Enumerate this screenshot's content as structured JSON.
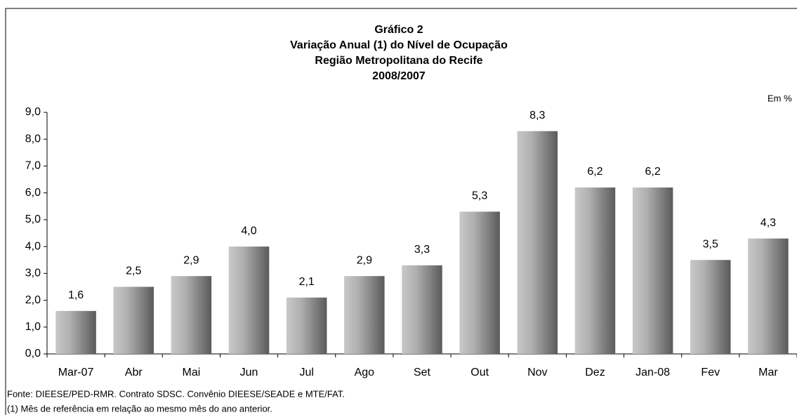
{
  "chart_data": {
    "type": "bar",
    "title": [
      "Gráfico 2",
      "Variação Anual (1) do Nível de Ocupação",
      "Região Metropolitana do Recife",
      "2008/2007"
    ],
    "unit_label": "Em %",
    "categories": [
      "Mar-07",
      "Abr",
      "Mai",
      "Jun",
      "Jul",
      "Ago",
      "Set",
      "Out",
      "Nov",
      "Dez",
      "Jan-08",
      "Fev",
      "Mar"
    ],
    "values": [
      1.6,
      2.5,
      2.9,
      4.0,
      2.1,
      2.9,
      3.3,
      5.3,
      8.3,
      6.2,
      6.2,
      3.5,
      4.3
    ],
    "value_labels": [
      "1,6",
      "2,5",
      "2,9",
      "4,0",
      "2,1",
      "2,9",
      "3,3",
      "5,3",
      "8,3",
      "6,2",
      "6,2",
      "3,5",
      "4,3"
    ],
    "color": "#9a9a9a",
    "ylim": [
      0,
      9
    ],
    "yticks": [
      {
        "value": 0,
        "label": "0,0"
      },
      {
        "value": 1,
        "label": "1,0"
      },
      {
        "value": 2,
        "label": "2,0"
      },
      {
        "value": 3,
        "label": "3,0"
      },
      {
        "value": 4,
        "label": "4,0"
      },
      {
        "value": 5,
        "label": "5,0"
      },
      {
        "value": 6,
        "label": "6,0"
      },
      {
        "value": 7,
        "label": "7,0"
      },
      {
        "value": 8,
        "label": "8,0"
      },
      {
        "value": 9,
        "label": "9,0"
      }
    ],
    "grid": false,
    "notes": [
      "Fonte: DIEESE/PED-RMR. Contrato SDSC. Convênio DIEESE/SEADE e MTE/FAT.",
      "(1) Mês de referência em relação ao mesmo mês do ano anterior."
    ]
  }
}
